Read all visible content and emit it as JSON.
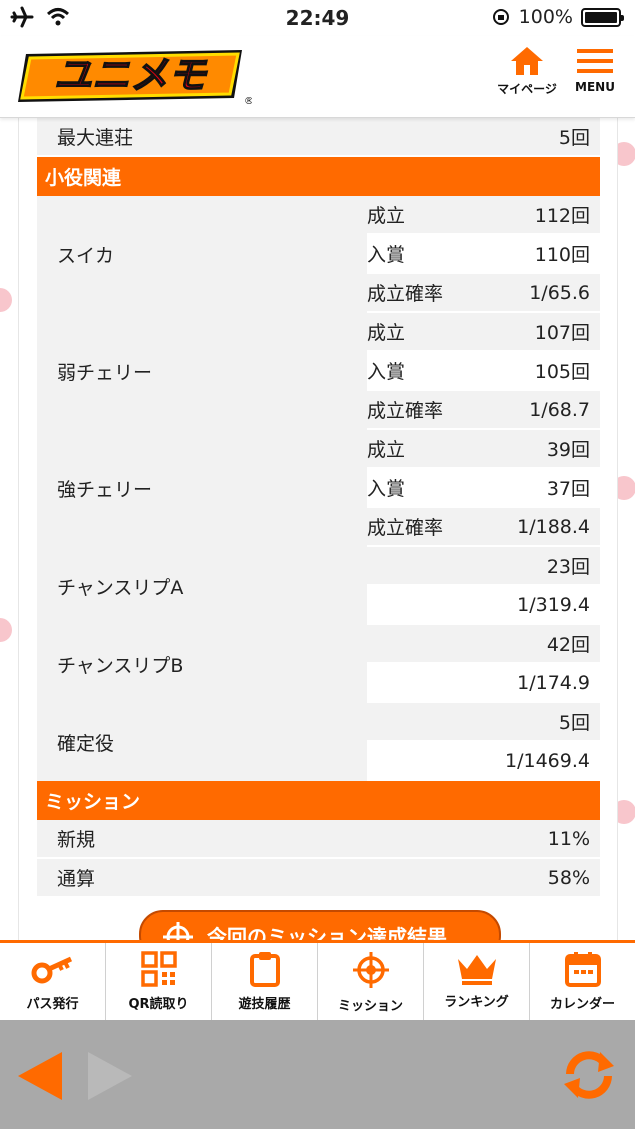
{
  "status": {
    "time": "22:49",
    "battery": "100%"
  },
  "header": {
    "logo_text": "ユニメモ",
    "mypage_label": "マイページ",
    "menu_label": "MENU",
    "accent": "#ff6a00"
  },
  "top_row": {
    "label": "最大連荘",
    "value": "5回"
  },
  "section_small": {
    "title": "小役関連"
  },
  "small_roles": [
    {
      "name": "スイカ",
      "rows": [
        {
          "k": "成立",
          "v": "112回"
        },
        {
          "k": "入賞",
          "v": "110回"
        },
        {
          "k": "成立確率",
          "v": "1/65.6"
        }
      ]
    },
    {
      "name": "弱チェリー",
      "rows": [
        {
          "k": "成立",
          "v": "107回"
        },
        {
          "k": "入賞",
          "v": "105回"
        },
        {
          "k": "成立確率",
          "v": "1/68.7"
        }
      ]
    },
    {
      "name": "強チェリー",
      "rows": [
        {
          "k": "成立",
          "v": "39回"
        },
        {
          "k": "入賞",
          "v": "37回"
        },
        {
          "k": "成立確率",
          "v": "1/188.4"
        }
      ]
    },
    {
      "name": "チャンスリプA",
      "rows": [
        {
          "k": "",
          "v": "23回"
        },
        {
          "k": "",
          "v": "1/319.4"
        }
      ]
    },
    {
      "name": "チャンスリプB",
      "rows": [
        {
          "k": "",
          "v": "42回"
        },
        {
          "k": "",
          "v": "1/174.9"
        }
      ]
    },
    {
      "name": "確定役",
      "rows": [
        {
          "k": "",
          "v": "5回"
        },
        {
          "k": "",
          "v": "1/1469.4"
        }
      ]
    }
  ],
  "section_mission": {
    "title": "ミッション"
  },
  "mission_rows": [
    {
      "k": "新規",
      "v": "11%"
    },
    {
      "k": "通算",
      "v": "58%"
    }
  ],
  "mission_button": {
    "label": "今回のミッション達成結果"
  },
  "bottom_nav": [
    {
      "label": "パス発行",
      "icon": "key-icon"
    },
    {
      "label": "QR読取り",
      "icon": "qr-code-icon"
    },
    {
      "label": "遊技履歴",
      "icon": "clipboard-icon"
    },
    {
      "label": "ミッション",
      "icon": "crosshair-icon"
    },
    {
      "label": "ランキング",
      "icon": "crown-icon"
    },
    {
      "label": "カレンダー",
      "icon": "calendar-icon"
    }
  ]
}
